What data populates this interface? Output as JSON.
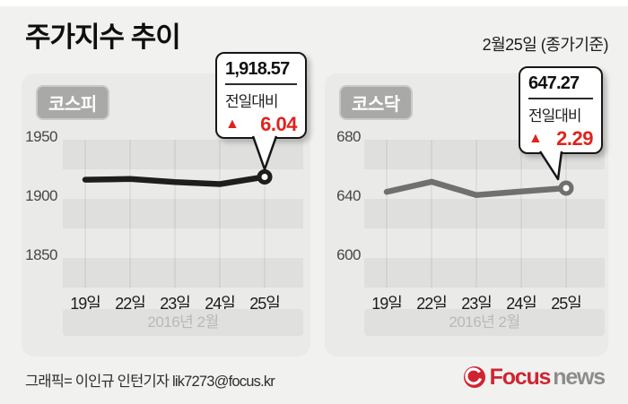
{
  "header": {
    "title": "주가지수 추이",
    "date_note": "2월25일 (종가기준)"
  },
  "panels": [
    {
      "label": "코스피",
      "callout": {
        "value": "1,918.57",
        "change_label": "전일대비",
        "direction_symbol": "▲",
        "change_value": "6.04"
      },
      "y_ticks": [
        "1950",
        "1900",
        "1850"
      ],
      "x_ticks": [
        "19일",
        "22일",
        "23일",
        "24일",
        "25일"
      ],
      "month_label": "2016년 2월"
    },
    {
      "label": "코스닥",
      "callout": {
        "value": "647.27",
        "change_label": "전일대비",
        "direction_symbol": "▲",
        "change_value": "2.29"
      },
      "y_ticks": [
        "680",
        "640",
        "600"
      ],
      "x_ticks": [
        "19일",
        "22일",
        "23일",
        "24일",
        "25일"
      ],
      "month_label": "2016년 2월"
    }
  ],
  "footer": {
    "credit": "그래픽= 이인규 인턴기자 lik7273@focus.kr",
    "logo": {
      "focus": "Focus",
      "news": "news"
    }
  },
  "colors": {
    "accent_red": "#e0231d",
    "logo_red": "#cf2430",
    "logo_gray": "#8c8c8a",
    "kospi_line": "#1e1e1c",
    "kosdaq_line": "#707070",
    "panel_bg": "#eaeae8",
    "stripe": "#dfdfdd"
  },
  "chart_data": [
    {
      "type": "line",
      "title": "코스피",
      "x": [
        "19일",
        "22일",
        "23일",
        "24일",
        "25일"
      ],
      "values": [
        1916.2,
        1916.8,
        1914.2,
        1912.5,
        1918.57
      ],
      "yticks": [
        1950,
        1900,
        1850
      ],
      "ylim": [
        1837,
        1962
      ],
      "xlabel": "2016년 2월",
      "ylabel": "",
      "line_color": "#1e1e1c",
      "last_label": "1,918.57",
      "change": "+6.04",
      "legend": "none",
      "grid": "striped-bands-with-vertical-lines"
    },
    {
      "type": "line",
      "title": "코스닥",
      "x": [
        "19일",
        "22일",
        "23일",
        "24일",
        "25일"
      ],
      "values": [
        644.7,
        651.6,
        642.6,
        644.98,
        647.27
      ],
      "yticks": [
        680,
        640,
        600
      ],
      "ylim": [
        590,
        690
      ],
      "xlabel": "2016년 2월",
      "ylabel": "",
      "line_color": "#707070",
      "last_label": "647.27",
      "change": "+2.29",
      "legend": "none",
      "grid": "striped-bands-with-vertical-lines"
    }
  ]
}
